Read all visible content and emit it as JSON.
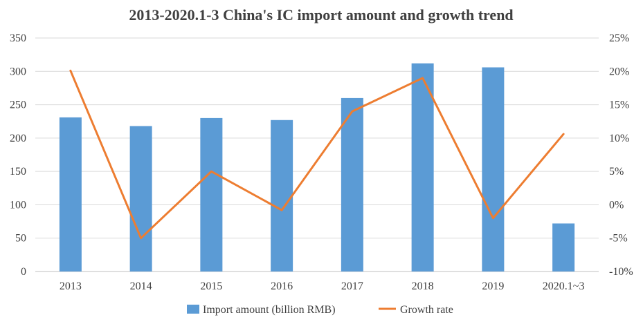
{
  "chart_data": {
    "type": "bar+line",
    "title": "2013-2020.1-3 China's IC import amount and growth trend",
    "categories": [
      "2013",
      "2014",
      "2015",
      "2016",
      "2017",
      "2018",
      "2019",
      "2020.1~3"
    ],
    "series": [
      {
        "name": "Import amount (billion RMB)",
        "type": "bar",
        "axis": "left",
        "color": "#5b9bd5",
        "values": [
          231,
          218,
          230,
          227,
          260,
          312,
          306,
          72
        ]
      },
      {
        "name": "Growth rate",
        "type": "line",
        "axis": "right",
        "color": "#ed7d31",
        "values": [
          20.1,
          -5,
          5,
          -0.8,
          14,
          19,
          -2,
          10.6
        ]
      }
    ],
    "y_left": {
      "min": 0,
      "max": 350,
      "step": 50,
      "tick_labels": [
        "0",
        "50",
        "100",
        "150",
        "200",
        "250",
        "300",
        "350"
      ]
    },
    "y_right": {
      "min": -10,
      "max": 25,
      "step": 5,
      "tick_labels": [
        "-10%",
        "-5%",
        "0%",
        "5%",
        "10%",
        "15%",
        "20%",
        "25%"
      ]
    },
    "grid": true,
    "legend": "bottom"
  }
}
